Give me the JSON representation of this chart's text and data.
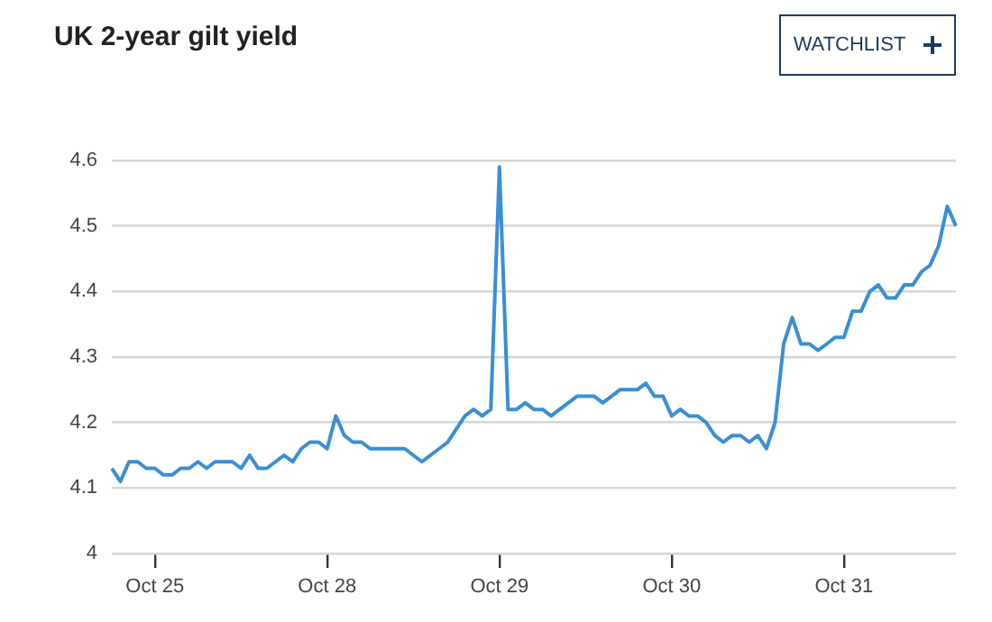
{
  "chart_data": {
    "type": "line",
    "title": "UK 2-year gilt yield",
    "annotations": [
      "WATCHLIST"
    ],
    "categories": [
      null,
      null,
      null,
      null,
      null,
      "Oct 25",
      null,
      null,
      null,
      null,
      null,
      null,
      null,
      null,
      null,
      null,
      null,
      null,
      null,
      null,
      null,
      null,
      null,
      null,
      null,
      "Oct 28",
      null,
      null,
      null,
      null,
      null,
      null,
      null,
      null,
      null,
      null,
      null,
      null,
      null,
      null,
      null,
      null,
      null,
      null,
      null,
      "Oct 29",
      null,
      null,
      null,
      null,
      null,
      null,
      null,
      null,
      null,
      null,
      null,
      null,
      null,
      null,
      null,
      null,
      null,
      null,
      null,
      "Oct 30",
      null,
      null,
      null,
      null,
      null,
      null,
      null,
      null,
      null,
      null,
      null,
      null,
      null,
      null,
      null,
      null,
      null,
      null,
      null,
      "Oct 31",
      null,
      null,
      null,
      null,
      null,
      null,
      null,
      null,
      null,
      null,
      null,
      null,
      null
    ],
    "values": [
      4.13,
      4.11,
      4.14,
      4.14,
      4.13,
      4.13,
      4.12,
      4.12,
      4.13,
      4.13,
      4.14,
      4.13,
      4.14,
      4.14,
      4.14,
      4.13,
      4.15,
      4.13,
      4.13,
      4.14,
      4.15,
      4.14,
      4.16,
      4.17,
      4.17,
      4.16,
      4.21,
      4.18,
      4.17,
      4.17,
      4.16,
      4.16,
      4.16,
      4.16,
      4.16,
      4.15,
      4.14,
      4.15,
      4.16,
      4.17,
      4.19,
      4.21,
      4.22,
      4.21,
      4.22,
      4.59,
      4.22,
      4.22,
      4.23,
      4.22,
      4.22,
      4.21,
      4.22,
      4.23,
      4.24,
      4.24,
      4.24,
      4.23,
      4.24,
      4.25,
      4.25,
      4.25,
      4.26,
      4.24,
      4.24,
      4.21,
      4.22,
      4.21,
      4.21,
      4.2,
      4.18,
      4.17,
      4.18,
      4.18,
      4.17,
      4.18,
      4.16,
      4.2,
      4.32,
      4.36,
      4.32,
      4.32,
      4.31,
      4.32,
      4.33,
      4.33,
      4.37,
      4.37,
      4.4,
      4.41,
      4.39,
      4.39,
      4.41,
      4.41,
      4.43,
      4.44,
      4.47,
      4.53,
      4.5
    ],
    "color": "#3a8fd4",
    "ylim": [
      4,
      4.6
    ],
    "yticks": [
      4,
      4.1,
      4.2,
      4.3,
      4.4,
      4.5,
      4.6
    ],
    "grid": "y"
  }
}
